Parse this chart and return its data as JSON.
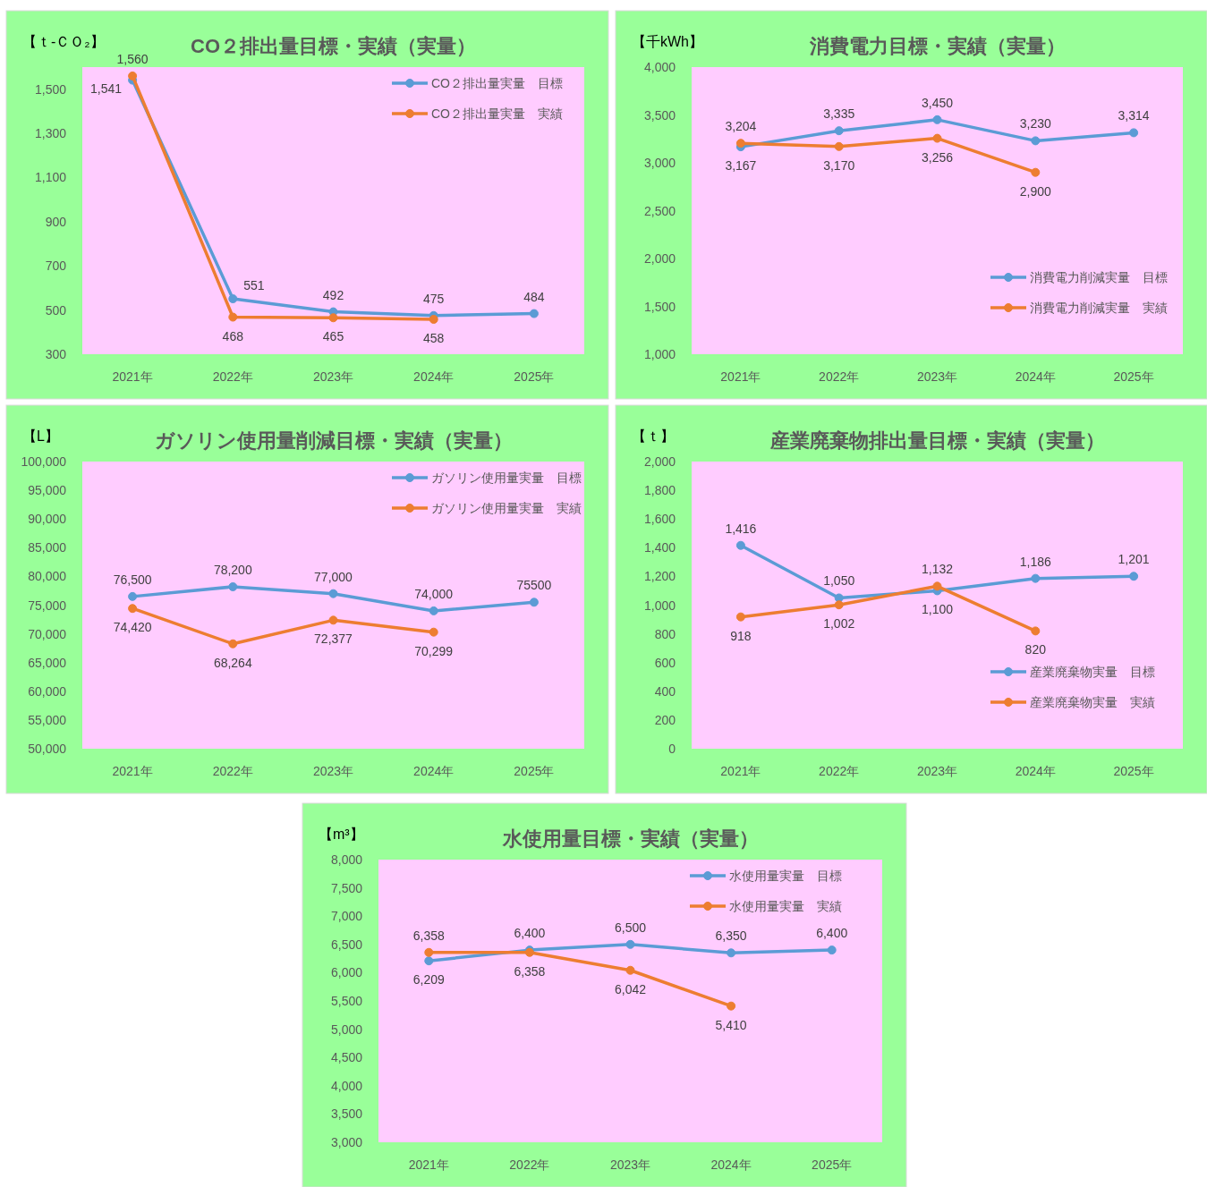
{
  "chart_data": [
    {
      "type": "line",
      "title": "CO２排出量目標・実績（実量）",
      "ylabel": "【ｔ-ＣＯ₂】",
      "categories": [
        "2021年",
        "2022年",
        "2023年",
        "2024年",
        "2025年"
      ],
      "ylim": [
        300,
        1600
      ],
      "yticks": [
        300,
        500,
        700,
        900,
        {
          "value": 1100,
          "label": "1,100"
        },
        {
          "value": 1300,
          "label": "1,300"
        },
        {
          "value": 1500,
          "label": "1,500"
        }
      ],
      "legend": "top right",
      "marker": "circle",
      "grid": false,
      "series": [
        {
          "name": "CO２排出量実量　目標",
          "color": "#5b9bd5",
          "values": [
            1541,
            551,
            492,
            475,
            484
          ],
          "value_labels": [
            "1,541",
            "551",
            "492",
            "475",
            "484"
          ]
        },
        {
          "name": "CO２排出量実量　実績",
          "color": "#ed7d31",
          "values": [
            1560,
            468,
            465,
            458,
            null
          ],
          "value_labels": [
            "1,560",
            "468",
            "465",
            "458",
            null
          ]
        }
      ]
    },
    {
      "type": "line",
      "title": "消費電力目標・実績（実量）",
      "ylabel": "【千kWh】",
      "categories": [
        "2021年",
        "2022年",
        "2023年",
        "2024年",
        "2025年"
      ],
      "ylim": [
        1000,
        4000
      ],
      "yticks": [
        {
          "value": 1000,
          "label": "1,000"
        },
        {
          "value": 1500,
          "label": "1,500"
        },
        {
          "value": 2000,
          "label": "2,000"
        },
        {
          "value": 2500,
          "label": "2,500"
        },
        {
          "value": 3000,
          "label": "3,000"
        },
        {
          "value": 3500,
          "label": "3,500"
        },
        {
          "value": 4000,
          "label": "4,000"
        }
      ],
      "legend": "bottom right",
      "marker": "circle",
      "grid": false,
      "series": [
        {
          "name": "消費電力削減実量　目標",
          "color": "#5b9bd5",
          "values": [
            3167,
            3335,
            3450,
            3230,
            3314
          ],
          "value_labels": [
            "3,167",
            "3,335",
            "3,450",
            "3,230",
            "3,314"
          ]
        },
        {
          "name": "消費電力削減実量　実績",
          "color": "#ed7d31",
          "values": [
            3204,
            3170,
            3256,
            2900,
            null
          ],
          "value_labels": [
            "3,204",
            "3,170",
            "3,256",
            "2,900",
            null
          ]
        }
      ]
    },
    {
      "type": "line",
      "title": "ガソリン使用量削減目標・実績（実量）",
      "ylabel": "【L】",
      "categories": [
        "2021年",
        "2022年",
        "2023年",
        "2024年",
        "2025年"
      ],
      "ylim": [
        50000,
        100000
      ],
      "yticks": [
        {
          "value": 50000,
          "label": "50,000"
        },
        {
          "value": 55000,
          "label": "55,000"
        },
        {
          "value": 60000,
          "label": "60,000"
        },
        {
          "value": 65000,
          "label": "65,000"
        },
        {
          "value": 70000,
          "label": "70,000"
        },
        {
          "value": 75000,
          "label": "75,000"
        },
        {
          "value": 80000,
          "label": "80,000"
        },
        {
          "value": 85000,
          "label": "85,000"
        },
        {
          "value": 90000,
          "label": "90,000"
        },
        {
          "value": 95000,
          "label": "95,000"
        },
        {
          "value": 100000,
          "label": "100,000"
        }
      ],
      "legend": "top right",
      "marker": "circle",
      "grid": false,
      "series": [
        {
          "name": "ガソリン使用量実量　目標",
          "color": "#5b9bd5",
          "values": [
            76500,
            78200,
            77000,
            74000,
            75500
          ],
          "value_labels": [
            "76,500",
            "78,200",
            "77,000",
            "74,000",
            "75500"
          ]
        },
        {
          "name": "ガソリン使用量実量　実績",
          "color": "#ed7d31",
          "values": [
            74420,
            68264,
            72377,
            70299,
            null
          ],
          "value_labels": [
            "74,420",
            "68,264",
            "72,377",
            "70,299",
            null
          ]
        }
      ]
    },
    {
      "type": "line",
      "title": "産業廃棄物排出量目標・実績（実量）",
      "ylabel": "【ｔ】",
      "categories": [
        "2021年",
        "2022年",
        "2023年",
        "2024年",
        "2025年"
      ],
      "ylim": [
        0,
        2000
      ],
      "yticks": [
        0,
        200,
        400,
        600,
        800,
        {
          "value": 1000,
          "label": "1,000"
        },
        {
          "value": 1200,
          "label": "1,200"
        },
        {
          "value": 1400,
          "label": "1,400"
        },
        {
          "value": 1600,
          "label": "1,600"
        },
        {
          "value": 1800,
          "label": "1,800"
        },
        {
          "value": 2000,
          "label": "2,000"
        }
      ],
      "legend": "bottom right",
      "marker": "circle",
      "grid": false,
      "series": [
        {
          "name": "産業廃棄物実量　目標",
          "color": "#5b9bd5",
          "values": [
            1416,
            1050,
            1100,
            1186,
            1201
          ],
          "value_labels": [
            "1,416",
            "1,050",
            "1,100",
            "1,186",
            "1,201"
          ]
        },
        {
          "name": "産業廃棄物実量　実績",
          "color": "#ed7d31",
          "values": [
            918,
            1002,
            1132,
            820,
            null
          ],
          "value_labels": [
            "918",
            "1,002",
            "1,132",
            "820",
            null
          ]
        }
      ]
    },
    {
      "type": "line",
      "title": "水使用量目標・実績（実量）",
      "ylabel": "【m³】",
      "categories": [
        "2021年",
        "2022年",
        "2023年",
        "2024年",
        "2025年"
      ],
      "ylim": [
        3000,
        8000
      ],
      "yticks": [
        {
          "value": 3000,
          "label": "3,000"
        },
        {
          "value": 3500,
          "label": "3,500"
        },
        {
          "value": 4000,
          "label": "4,000"
        },
        {
          "value": 4500,
          "label": "4,500"
        },
        {
          "value": 5000,
          "label": "5,000"
        },
        {
          "value": 5500,
          "label": "5,500"
        },
        {
          "value": 6000,
          "label": "6,000"
        },
        {
          "value": 6500,
          "label": "6,500"
        },
        {
          "value": 7000,
          "label": "7,000"
        },
        {
          "value": 7500,
          "label": "7,500"
        },
        {
          "value": 8000,
          "label": "8,000"
        }
      ],
      "legend": "top right",
      "marker": "circle",
      "grid": false,
      "series": [
        {
          "name": "水使用量実量　目標",
          "color": "#5b9bd5",
          "values": [
            6209,
            6400,
            6500,
            6350,
            6400
          ],
          "value_labels": [
            "6,209",
            "6,400",
            "6,500",
            "6,350",
            "6,400"
          ]
        },
        {
          "name": "水使用量実量　実績",
          "color": "#ed7d31",
          "values": [
            6358,
            6358,
            6042,
            5410,
            null
          ],
          "value_labels": [
            "6,358",
            "6,358",
            "6,042",
            "5,410",
            null
          ]
        }
      ]
    }
  ]
}
